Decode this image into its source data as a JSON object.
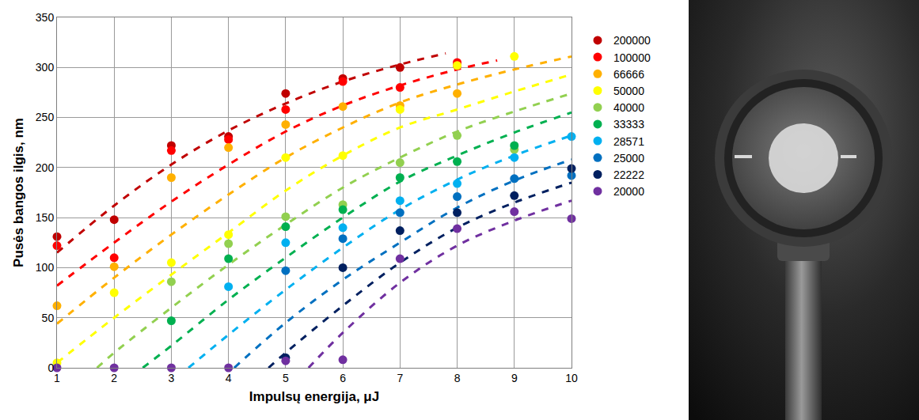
{
  "chart_data": {
    "type": "scatter",
    "x_label": "Impulsų energija, μJ",
    "y_label": "Pusės bangos ilgis, nm",
    "xlim": [
      1,
      10
    ],
    "xticks": [
      1,
      2,
      3,
      4,
      5,
      6,
      7,
      8,
      9,
      10
    ],
    "ylim": [
      0,
      350
    ],
    "yticks": [
      0,
      50,
      100,
      150,
      200,
      250,
      300,
      350
    ],
    "grid": true,
    "legend": "right",
    "series": [
      {
        "name": "200000",
        "color": "#c00000",
        "marker": "circle",
        "x": [
          1,
          2,
          3,
          4,
          5,
          6,
          7,
          8
        ],
        "values": [
          131,
          148,
          222,
          231,
          274,
          289,
          300,
          302
        ],
        "trend": {
          "line_style": "dashed",
          "x": [
            1,
            2,
            3,
            4,
            5,
            6,
            7,
            7.8
          ],
          "values": [
            115,
            162,
            203,
            237,
            264,
            286,
            303,
            314
          ]
        }
      },
      {
        "name": "100000",
        "color": "#ff0000",
        "marker": "circle",
        "x": [
          1,
          2,
          3,
          4,
          5,
          6,
          7,
          8
        ],
        "values": [
          122,
          110,
          217,
          228,
          258,
          286,
          280,
          305
        ],
        "trend": {
          "line_style": "dashed",
          "x": [
            1,
            2,
            3,
            4,
            5,
            6,
            7,
            8,
            8.7
          ],
          "values": [
            82,
            125,
            166,
            203,
            236,
            262,
            282,
            298,
            307
          ]
        }
      },
      {
        "name": "66666",
        "color": "#ffb000",
        "marker": "circle",
        "x": [
          1,
          2,
          3,
          4,
          5,
          6,
          7,
          8
        ],
        "values": [
          62,
          101,
          190,
          220,
          243,
          261,
          262,
          274
        ],
        "trend": {
          "line_style": "dashed",
          "x": [
            1,
            2,
            3,
            4,
            5,
            6,
            7,
            8,
            9,
            10
          ],
          "values": [
            44,
            90,
            133,
            173,
            210,
            240,
            265,
            283,
            298,
            311
          ]
        }
      },
      {
        "name": "50000",
        "color": "#ffff00",
        "marker": "circle",
        "x": [
          1,
          2,
          3,
          4,
          5,
          6,
          7,
          8,
          9
        ],
        "values": [
          5,
          75,
          105,
          133,
          210,
          212,
          258,
          302,
          311
        ],
        "trend": {
          "line_style": "dashed",
          "x": [
            1,
            2,
            3,
            4,
            5,
            6,
            7,
            8,
            9,
            10
          ],
          "values": [
            5,
            50,
            93,
            135,
            177,
            212,
            240,
            258,
            276,
            293
          ]
        }
      },
      {
        "name": "40000",
        "color": "#92d050",
        "marker": "circle",
        "x": [
          3,
          4,
          5,
          6,
          7,
          8,
          9
        ],
        "values": [
          86,
          124,
          151,
          163,
          205,
          232,
          218
        ],
        "trend": {
          "line_style": "dashed",
          "x": [
            1.7,
            2,
            3,
            4,
            5,
            6,
            7,
            8,
            9,
            10
          ],
          "values": [
            0,
            15,
            60,
            103,
            143,
            180,
            210,
            236,
            256,
            274
          ]
        }
      },
      {
        "name": "33333",
        "color": "#00b050",
        "marker": "circle",
        "x": [
          3,
          4,
          5,
          6,
          7,
          8,
          9
        ],
        "values": [
          47,
          109,
          141,
          158,
          190,
          206,
          222
        ],
        "trend": {
          "line_style": "dashed",
          "x": [
            2.5,
            3,
            4,
            5,
            6,
            7,
            8,
            9,
            10
          ],
          "values": [
            0,
            22,
            68,
            110,
            150,
            186,
            212,
            235,
            255
          ]
        }
      },
      {
        "name": "28571",
        "color": "#00b0f0",
        "marker": "circle",
        "x": [
          4,
          5,
          6,
          7,
          8,
          9,
          10
        ],
        "values": [
          81,
          125,
          140,
          167,
          184,
          210,
          231
        ],
        "trend": {
          "line_style": "dashed",
          "x": [
            3.3,
            4,
            5,
            6,
            7,
            8,
            9,
            10
          ],
          "values": [
            0,
            33,
            78,
            120,
            158,
            188,
            212,
            232
          ]
        }
      },
      {
        "name": "25000",
        "color": "#0070c0",
        "marker": "circle",
        "x": [
          5,
          6,
          7,
          8,
          9,
          10
        ],
        "values": [
          97,
          129,
          155,
          171,
          189,
          192
        ],
        "trend": {
          "line_style": "dashed",
          "x": [
            4.1,
            5,
            6,
            7,
            8,
            9,
            10
          ],
          "values": [
            0,
            45,
            88,
            125,
            160,
            187,
            208
          ]
        }
      },
      {
        "name": "22222",
        "color": "#002060",
        "marker": "circle",
        "x": [
          5,
          6,
          7,
          8,
          9,
          10
        ],
        "values": [
          10,
          100,
          137,
          155,
          172,
          199
        ],
        "trend": {
          "line_style": "dashed",
          "x": [
            4.7,
            5,
            6,
            7,
            8,
            9,
            10
          ],
          "values": [
            0,
            15,
            62,
            105,
            140,
            165,
            185
          ]
        }
      },
      {
        "name": "20000",
        "color": "#7030a0",
        "marker": "circle",
        "x": [
          1,
          2,
          3,
          4,
          5,
          6,
          7,
          8,
          9,
          10
        ],
        "values": [
          0,
          0,
          0,
          0,
          7,
          8,
          109,
          139,
          156,
          149
        ],
        "trend": {
          "line_style": "dashed",
          "x": [
            5.4,
            6,
            7,
            8,
            9,
            10
          ],
          "values": [
            0,
            35,
            85,
            122,
            147,
            167
          ]
        }
      }
    ]
  }
}
